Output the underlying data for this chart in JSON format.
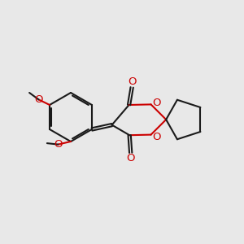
{
  "bg_color": "#e8e8e8",
  "bond_color": "#1a1a1a",
  "heteroatom_color": "#cc0000",
  "lw": 1.5,
  "dbl_off": 0.07,
  "fs": 9,
  "xlim": [
    0,
    10
  ],
  "ylim": [
    0.5,
    10.5
  ]
}
